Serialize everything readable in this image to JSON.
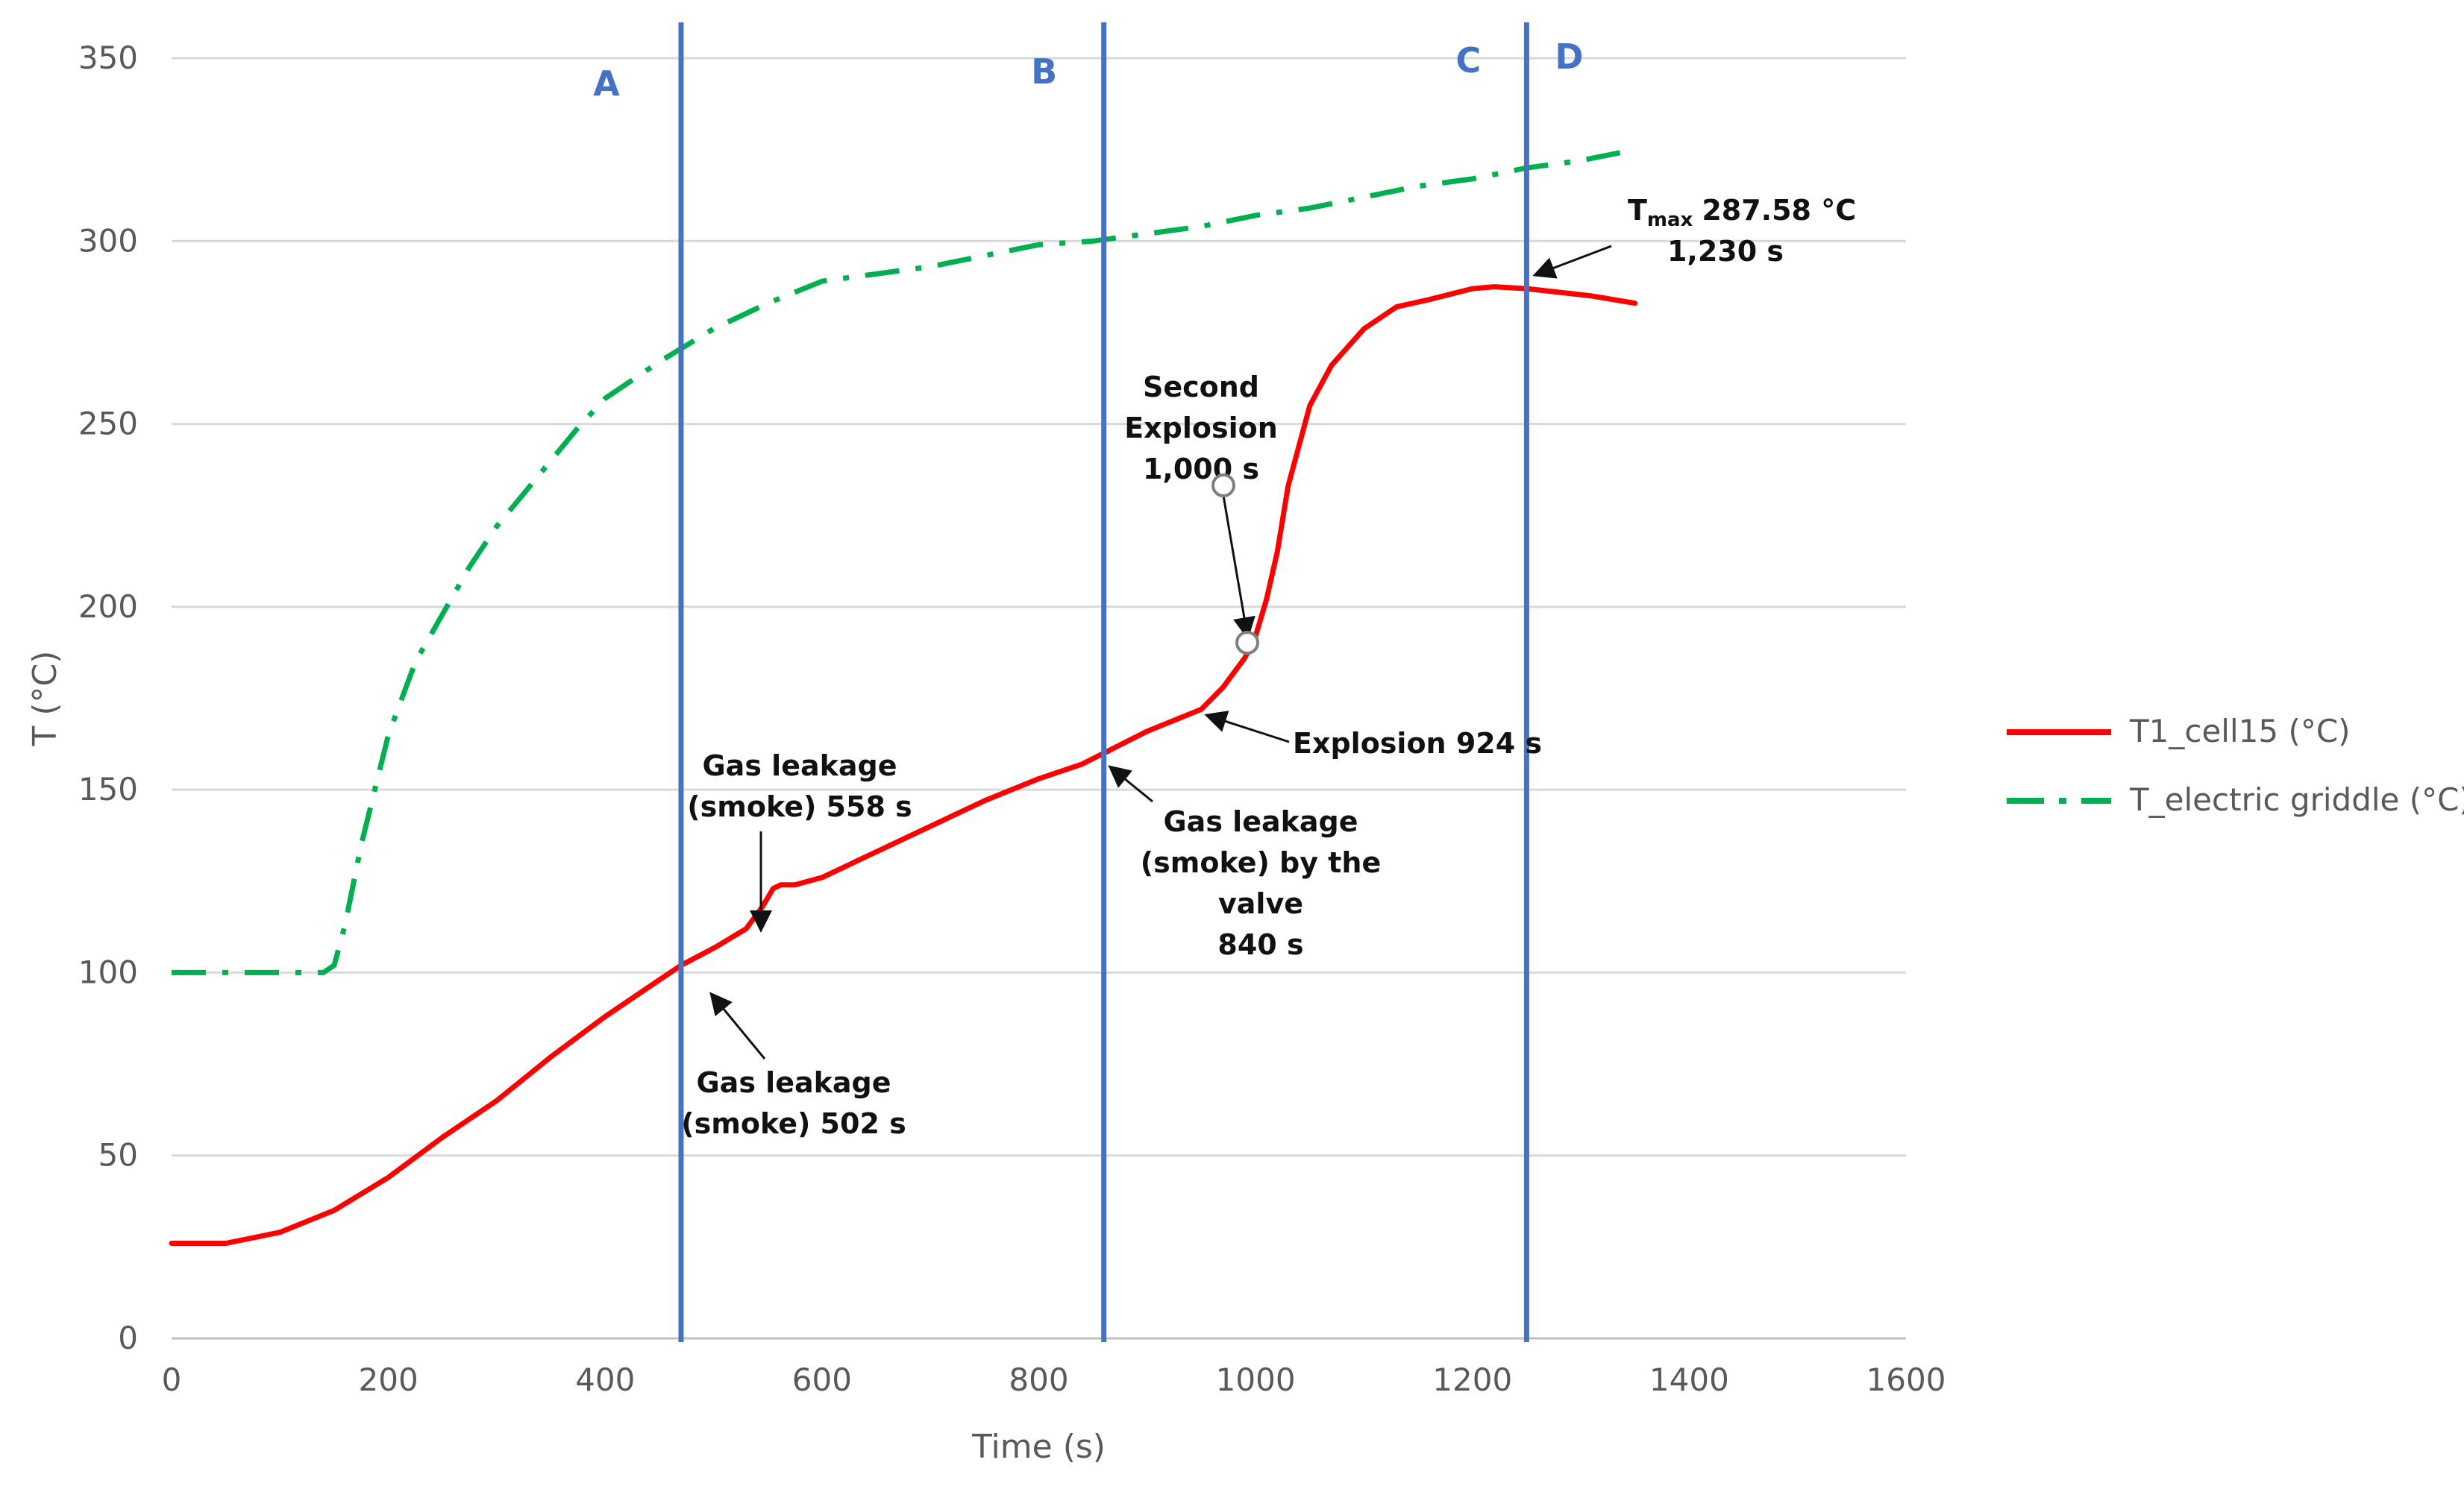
{
  "chart_data": {
    "type": "line",
    "title": "",
    "xlabel": "Time (s)",
    "ylabel": "T (°C)",
    "xlim": [
      0,
      1600
    ],
    "ylim": [
      0,
      350
    ],
    "x_ticks": [
      "0",
      "200",
      "400",
      "600",
      "800",
      "1000",
      "1200",
      "1400",
      "1600"
    ],
    "y_ticks": [
      "0",
      "50",
      "100",
      "150",
      "200",
      "250",
      "300",
      "350"
    ],
    "grid": "horizontal",
    "legend_position": "right",
    "series": [
      {
        "name": "T1_cell15 (°C)",
        "color": "#FF0000",
        "style": "solid",
        "x": [
          0,
          50,
          100,
          150,
          200,
          250,
          300,
          350,
          400,
          450,
          470,
          502,
          530,
          545,
          555,
          562,
          575,
          600,
          650,
          700,
          750,
          800,
          840,
          860,
          900,
          950,
          970,
          990,
          1000,
          1010,
          1020,
          1030,
          1050,
          1070,
          1100,
          1130,
          1160,
          1200,
          1220,
          1250,
          1280,
          1310,
          1350
        ],
        "y": [
          26,
          26,
          29,
          35,
          44,
          55,
          65,
          77,
          88,
          98,
          102,
          107,
          112,
          118,
          123,
          124,
          124,
          126,
          133,
          140,
          147,
          153,
          157,
          160,
          166,
          172,
          178,
          186,
          192,
          202,
          215,
          233,
          255,
          266,
          276,
          282,
          284,
          287,
          287.5,
          287,
          286,
          285,
          283
        ]
      },
      {
        "name": "T_electric griddle (°C)",
        "color": "#00B050",
        "style": "dash-dot",
        "x": [
          0,
          50,
          100,
          140,
          150,
          160,
          175,
          200,
          225,
          250,
          275,
          300,
          325,
          350,
          375,
          400,
          450,
          500,
          550,
          600,
          650,
          700,
          750,
          800,
          850,
          900,
          950,
          1000,
          1050,
          1100,
          1150,
          1200,
          1250,
          1300,
          1350
        ],
        "y": [
          100,
          100,
          100,
          100,
          102,
          113,
          135,
          165,
          185,
          198,
          211,
          222,
          231,
          240,
          249,
          257,
          267,
          276,
          283,
          289,
          291,
          293,
          296,
          299,
          300,
          302,
          304,
          307,
          309,
          312,
          315,
          317,
          320,
          322,
          325
        ]
      }
    ],
    "phase_markers": [
      {
        "label": "A",
        "x": 470
      },
      {
        "label": "B",
        "x": 860
      },
      {
        "label": "C",
        "x": 1250
      },
      {
        "label": "D",
        "x": 1250
      }
    ],
    "annotations": {
      "leak_502": [
        "Gas leakage",
        "(smoke) 502 s"
      ],
      "leak_558": [
        "Gas leakage",
        "(smoke) 558 s"
      ],
      "leak_840": [
        "Gas leakage",
        "(smoke) by the",
        "valve",
        "840 s"
      ],
      "explosion_924": "Explosion 924 s",
      "second_explosion": [
        "Second",
        "Explosion",
        "1,000 s"
      ],
      "tmax_symbol": "T",
      "tmax_sub": "max",
      "tmax_value": "287.58 °C",
      "tmax_time": "1,230 s"
    }
  }
}
